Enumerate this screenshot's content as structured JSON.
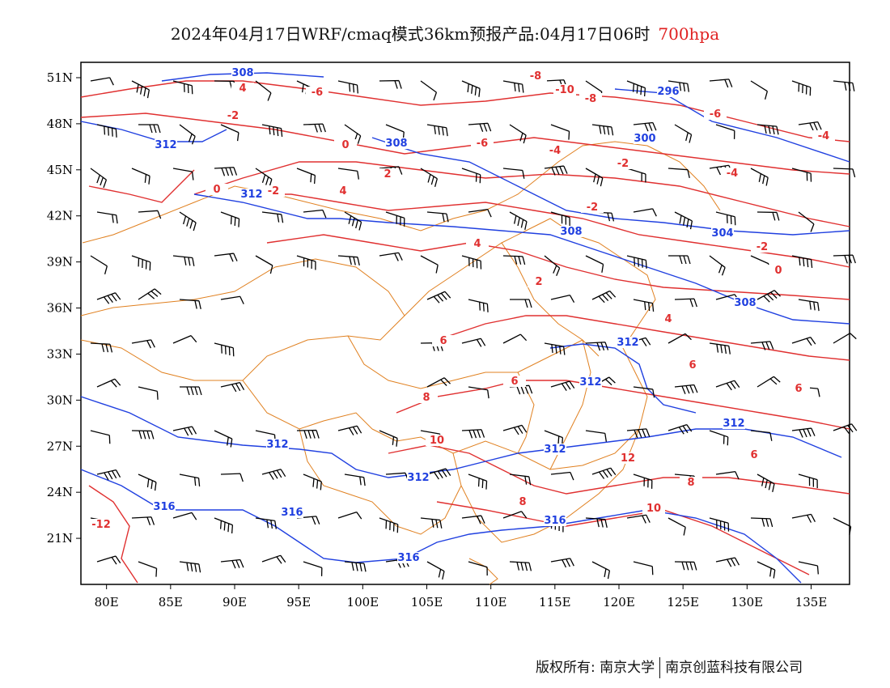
{
  "title": {
    "main": "2024年04月17日WRF/cmaq模式36km预报产品:04月17日06时",
    "level": "700hpa"
  },
  "map": {
    "lon_range": [
      78,
      138
    ],
    "lat_range": [
      18,
      52
    ],
    "lon_ticks": [
      "80E",
      "85E",
      "90E",
      "95E",
      "100E",
      "105E",
      "110E",
      "115E",
      "120E",
      "125E",
      "130E",
      "135E"
    ],
    "lat_ticks": [
      "51N",
      "48N",
      "45N",
      "42N",
      "39N",
      "36N",
      "33N",
      "30N",
      "27N",
      "24N",
      "21N"
    ],
    "colors": {
      "temperature": "#e03030",
      "geopotential": "#2040e0",
      "boundary": "#e08020",
      "wind": "#000000"
    },
    "temperature_labels": [
      "-12",
      "-10",
      "-8",
      "-8",
      "-6",
      "-6",
      "-6",
      "-4",
      "-4",
      "-4",
      "-2",
      "-2",
      "-2",
      "-2",
      "-2",
      "0",
      "0",
      "0",
      "2",
      "2",
      "4",
      "4",
      "4",
      "4",
      "6",
      "6",
      "6",
      "6",
      "6",
      "8",
      "8",
      "8",
      "10",
      "10",
      "12"
    ],
    "height_labels": [
      "296",
      "300",
      "304",
      "308",
      "308",
      "308",
      "308",
      "312",
      "312",
      "312",
      "312",
      "312",
      "312",
      "312",
      "312",
      "316",
      "316",
      "316",
      "316"
    ]
  },
  "footer": {
    "left": "版权所有: 南京大学",
    "right": "南京创蓝科技有限公司"
  }
}
